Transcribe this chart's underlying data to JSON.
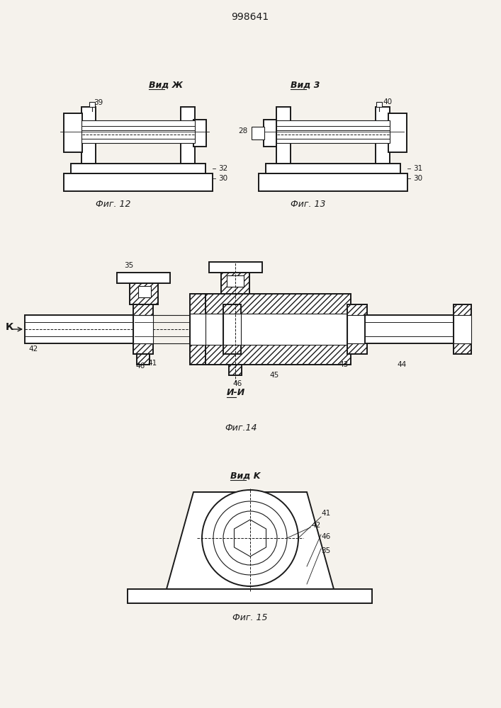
{
  "title": "998641",
  "bg_color": "#f5f2ec",
  "line_color": "#1a1a1a",
  "fig12_label": "Фиг. 12",
  "fig13_label": "Фиг. 13",
  "fig14_label": "Фиг.14",
  "fig15_label": "Фиг. 15",
  "vid_zh": "Вид Ж",
  "vid_z": "Вид 3",
  "vid_k": "Вид K",
  "ii_label": "И-И"
}
